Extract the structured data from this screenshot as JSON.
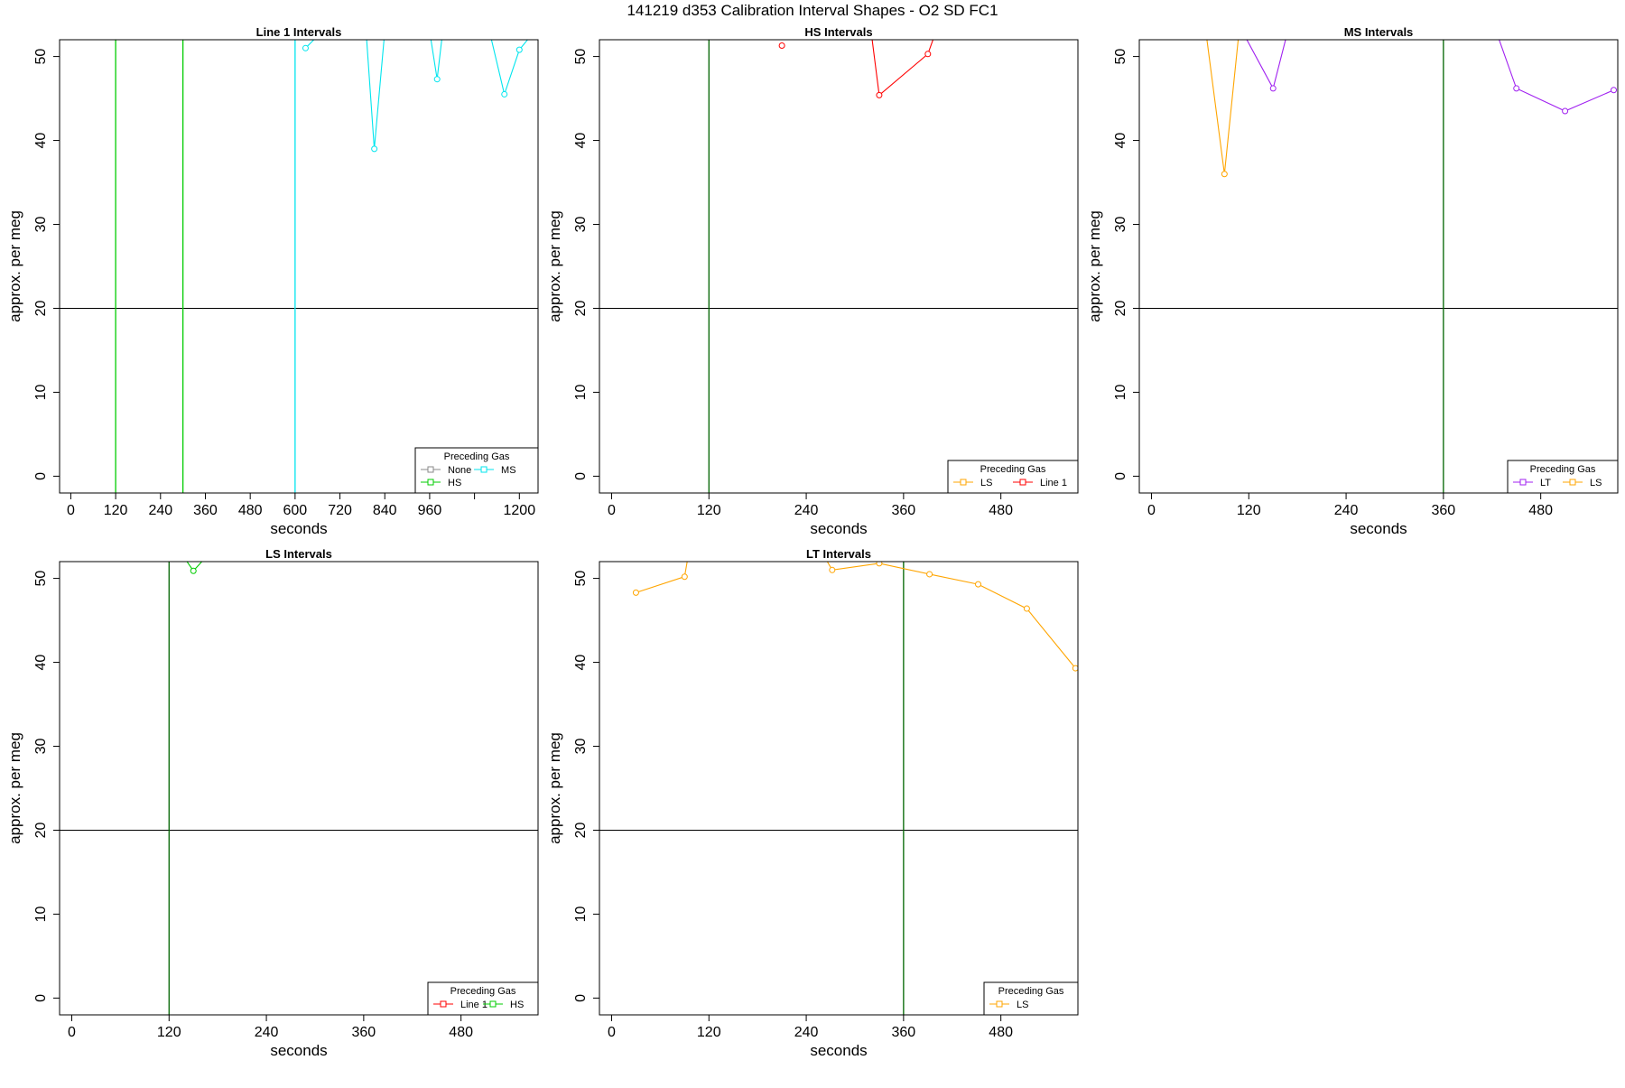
{
  "title": "141219   d353   Calibration Interval Shapes - O2 SD FC1",
  "chart_data": [
    {
      "type": "line",
      "title": "Line 1 Intervals",
      "xlabel": "seconds",
      "ylabel": "approx. per meg",
      "xlim": [
        -30,
        1250
      ],
      "ylim": [
        -2,
        52
      ],
      "xticks": [
        0,
        120,
        240,
        360,
        480,
        600,
        720,
        840,
        960,
        1080,
        1200
      ],
      "xtick_labels": [
        "0",
        "120",
        "240",
        "360",
        "480",
        "600",
        "720",
        "840",
        "960",
        "",
        "1200"
      ],
      "yticks": [
        0,
        10,
        20,
        30,
        40,
        50
      ],
      "hlines": [
        {
          "y": 20,
          "color": "#000000"
        }
      ],
      "vlines": [
        {
          "x": 120,
          "color": "#00cc00"
        },
        {
          "x": 300,
          "color": "#00cc00"
        },
        {
          "x": 600,
          "color": "#00e5ee"
        }
      ],
      "legend": {
        "title": "Preceding Gas",
        "position": "bottom-right",
        "entries": [
          {
            "label": "None",
            "color": "#888888"
          },
          {
            "label": "MS",
            "color": "#00e5ee"
          },
          {
            "label": "HS",
            "color": "#00cc00"
          }
        ]
      },
      "series": [
        {
          "name": "MS",
          "color": "#00e5ee",
          "points": [
            [
              628,
              51
            ],
            [
              668,
              52.8
            ],
            [
              790,
              53
            ],
            [
              812,
              39
            ],
            [
              840,
              53
            ],
            [
              960,
              53
            ],
            [
              980,
              47.3
            ],
            [
              995,
              53
            ],
            [
              1120,
              53
            ],
            [
              1160,
              45.5
            ],
            [
              1200,
              50.8
            ],
            [
              1240,
              53
            ]
          ]
        }
      ]
    },
    {
      "type": "line",
      "title": "HS Intervals",
      "xlabel": "seconds",
      "ylabel": "approx. per meg",
      "xlim": [
        -15,
        575
      ],
      "ylim": [
        -2,
        52
      ],
      "xticks": [
        0,
        120,
        240,
        360,
        480
      ],
      "xtick_labels": [
        "0",
        "120",
        "240",
        "360",
        "480"
      ],
      "yticks": [
        0,
        10,
        20,
        30,
        40,
        50
      ],
      "hlines": [
        {
          "y": 20,
          "color": "#000000"
        }
      ],
      "vlines": [
        {
          "x": 120,
          "color": "#006400"
        }
      ],
      "legend": {
        "title": "Preceding Gas",
        "position": "bottom-right",
        "entries": [
          {
            "label": "LS",
            "color": "#ffa500"
          },
          {
            "label": "Line 1",
            "color": "#ff0000"
          }
        ]
      },
      "series": [
        {
          "name": "Line 1",
          "color": "#ff0000",
          "points": [
            [
              210,
              51.3
            ]
          ]
        },
        {
          "name": "Line 1",
          "color": "#ff0000",
          "points": [
            [
              320,
              53
            ],
            [
              330,
              45.4
            ],
            [
              390,
              50.3
            ],
            [
              400,
              53
            ]
          ]
        }
      ]
    },
    {
      "type": "line",
      "title": "MS Intervals",
      "xlabel": "seconds",
      "ylabel": "approx. per meg",
      "xlim": [
        -15,
        575
      ],
      "ylim": [
        -2,
        52
      ],
      "xticks": [
        0,
        120,
        240,
        360,
        480
      ],
      "xtick_labels": [
        "0",
        "120",
        "240",
        "360",
        "480"
      ],
      "yticks": [
        0,
        10,
        20,
        30,
        40,
        50
      ],
      "hlines": [
        {
          "y": 20,
          "color": "#000000"
        }
      ],
      "vlines": [
        {
          "x": 360,
          "color": "#006400"
        }
      ],
      "legend": {
        "title": "Preceding Gas",
        "position": "bottom-right",
        "entries": [
          {
            "label": "LT",
            "color": "#a020f0"
          },
          {
            "label": "LS",
            "color": "#ffa500"
          }
        ]
      },
      "series": [
        {
          "name": "LS",
          "color": "#ffa500",
          "points": [
            [
              67,
              53
            ],
            [
              90,
              36
            ],
            [
              108,
              53
            ]
          ]
        },
        {
          "name": "LT",
          "color": "#a020f0",
          "points": [
            [
              112,
              53
            ],
            [
              150,
              46.2
            ],
            [
              168,
              53
            ]
          ]
        },
        {
          "name": "LT",
          "color": "#a020f0",
          "points": [
            [
              425,
              53
            ],
            [
              450,
              46.2
            ],
            [
              510,
              43.5
            ],
            [
              570,
              46
            ]
          ]
        }
      ]
    },
    {
      "type": "line",
      "title": "LS Intervals",
      "xlabel": "seconds",
      "ylabel": "approx. per meg",
      "xlim": [
        -15,
        575
      ],
      "ylim": [
        -2,
        52
      ],
      "xticks": [
        0,
        120,
        240,
        360,
        480
      ],
      "xtick_labels": [
        "0",
        "120",
        "240",
        "360",
        "480"
      ],
      "yticks": [
        0,
        10,
        20,
        30,
        40,
        50
      ],
      "hlines": [
        {
          "y": 20,
          "color": "#000000"
        }
      ],
      "vlines": [
        {
          "x": 120,
          "color": "#006400"
        }
      ],
      "legend": {
        "title": "Preceding Gas",
        "position": "bottom-right",
        "entries": [
          {
            "label": "Line 1",
            "color": "#ff0000"
          },
          {
            "label": "HS",
            "color": "#00cc00"
          }
        ]
      },
      "series": [
        {
          "name": "HS",
          "color": "#00cc00",
          "points": [
            [
              135,
              53
            ],
            [
              150,
              50.9
            ],
            [
              170,
              53
            ]
          ]
        }
      ]
    },
    {
      "type": "line",
      "title": "LT Intervals",
      "xlabel": "seconds",
      "ylabel": "approx. per meg",
      "xlim": [
        -15,
        575
      ],
      "ylim": [
        -2,
        52
      ],
      "xticks": [
        0,
        120,
        240,
        360,
        480
      ],
      "xtick_labels": [
        "0",
        "120",
        "240",
        "360",
        "480"
      ],
      "yticks": [
        0,
        10,
        20,
        30,
        40,
        50
      ],
      "hlines": [
        {
          "y": 20,
          "color": "#000000"
        }
      ],
      "vlines": [
        {
          "x": 360,
          "color": "#006400"
        }
      ],
      "legend": {
        "title": "Preceding Gas",
        "position": "bottom-right",
        "entries": [
          {
            "label": "LS",
            "color": "#ffa500"
          }
        ]
      },
      "series": [
        {
          "name": "LS",
          "color": "#ffa500",
          "points": [
            [
              30,
              48.3
            ],
            [
              90,
              50.2
            ],
            [
              95,
              53
            ]
          ]
        },
        {
          "name": "LS",
          "color": "#ffa500",
          "points": [
            [
              260,
              53
            ],
            [
              272,
              51
            ],
            [
              330,
              51.8
            ],
            [
              392,
              50.5
            ],
            [
              452,
              49.3
            ],
            [
              512,
              46.4
            ],
            [
              572,
              39.3
            ]
          ]
        }
      ]
    }
  ]
}
